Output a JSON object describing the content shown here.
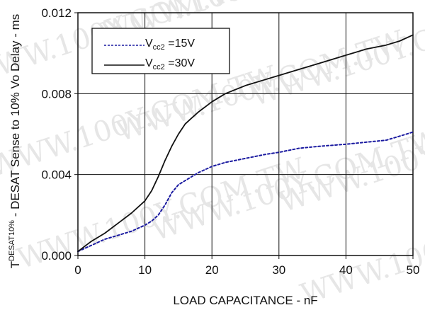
{
  "chart_data": {
    "type": "line",
    "xlabel": "LOAD CAPACITANCE - nF",
    "ylabel": {
      "prefix": "T",
      "superscript": "DESAT10%",
      "rest": " - DESAT Sense to 10% Vo Delay - ms"
    },
    "xlim": [
      0,
      50
    ],
    "ylim": [
      0,
      0.012
    ],
    "xticks": [
      "0",
      "10",
      "20",
      "30",
      "40",
      "50"
    ],
    "yticks": [
      "0.000",
      "0.004",
      "0.008",
      "0.012"
    ],
    "grid": true,
    "legend_position": "top-left",
    "watermark": "WWW.100Y.COM.TW",
    "series": [
      {
        "name": "Vcc2 =15V",
        "legend": {
          "prefix": "V",
          "sub": "cc2",
          "suffix": " =15V"
        },
        "style": "dotted",
        "color": "#1a1aa0",
        "x": [
          0,
          2,
          4,
          6,
          8,
          10,
          11,
          12,
          13,
          14,
          15,
          16,
          17,
          18,
          20,
          22,
          25,
          28,
          30,
          33,
          36,
          40,
          43,
          46,
          48,
          50
        ],
        "y": [
          0.0002,
          0.0005,
          0.0008,
          0.001,
          0.0012,
          0.0015,
          0.0017,
          0.002,
          0.0025,
          0.0031,
          0.0035,
          0.0037,
          0.0039,
          0.0041,
          0.0044,
          0.0046,
          0.0048,
          0.005,
          0.0051,
          0.0053,
          0.0054,
          0.0055,
          0.0056,
          0.0057,
          0.0059,
          0.0061
        ]
      },
      {
        "name": "Vcc2 =30V",
        "legend": {
          "prefix": "V",
          "sub": "cc2",
          "suffix": " =30V"
        },
        "style": "solid",
        "color": "#111111",
        "x": [
          0,
          2,
          4,
          6,
          8,
          10,
          11,
          12,
          13,
          14,
          15,
          16,
          17,
          18,
          20,
          22,
          25,
          28,
          30,
          33,
          36,
          40,
          43,
          46,
          48,
          50
        ],
        "y": [
          0.0002,
          0.0007,
          0.0011,
          0.0016,
          0.0021,
          0.0027,
          0.0032,
          0.0039,
          0.0047,
          0.0054,
          0.006,
          0.0065,
          0.0068,
          0.0071,
          0.0076,
          0.008,
          0.0084,
          0.0087,
          0.0089,
          0.0092,
          0.0095,
          0.0099,
          0.0102,
          0.0104,
          0.0106,
          0.0109
        ]
      }
    ]
  }
}
